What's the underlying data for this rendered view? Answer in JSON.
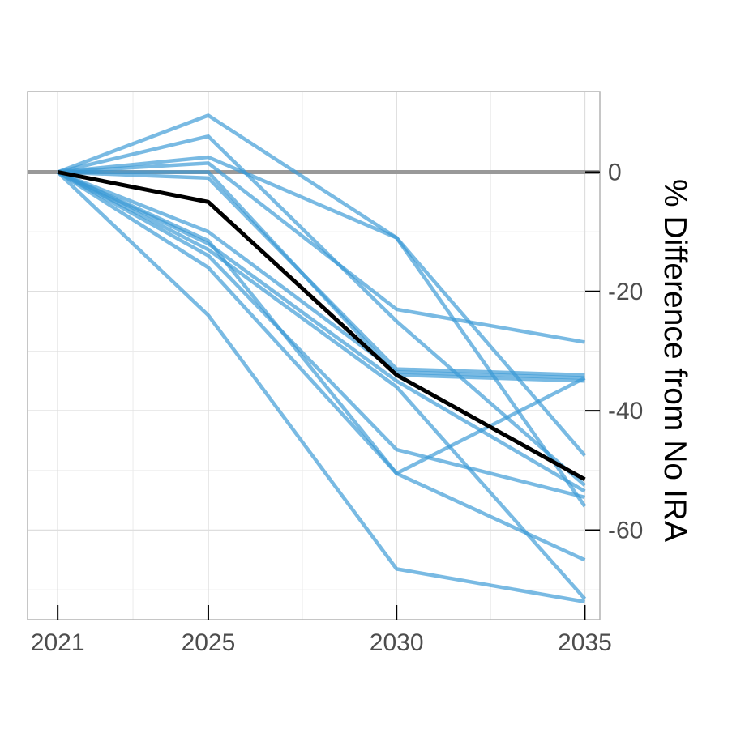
{
  "chart_data": {
    "type": "line",
    "title": "",
    "xlabel": "",
    "ylabel": "% Difference from No IRA",
    "x": [
      2021,
      2025,
      2030,
      2035
    ],
    "xlim": [
      2020.2,
      2035.4
    ],
    "ylim": [
      -75,
      13.5
    ],
    "x_ticks": [
      2021,
      2025,
      2030,
      2035
    ],
    "y_ticks": [
      0,
      -20,
      -40,
      -60
    ],
    "y_axis_position": "right",
    "grid": true,
    "legend": "none",
    "reference_line": {
      "y": 0,
      "color": "#999999"
    },
    "colors": {
      "models": "#3a9ad6",
      "median": "#000000"
    },
    "series": [
      {
        "values": [
          0,
          9.5,
          -11,
          -47.5
        ]
      },
      {
        "values": [
          0,
          6,
          -25,
          -52.5
        ]
      },
      {
        "values": [
          0,
          2.5,
          -11,
          -56
        ]
      },
      {
        "values": [
          0,
          1.5,
          -23,
          -28.5
        ]
      },
      {
        "values": [
          0,
          -1,
          -33,
          -34
        ]
      },
      {
        "values": [
          0,
          0,
          -34,
          -35
        ]
      },
      {
        "values": [
          0,
          -10,
          -33.5,
          -34.5
        ]
      },
      {
        "values": [
          0,
          -12,
          -35,
          -53.5
        ]
      },
      {
        "values": [
          0,
          -14,
          -46.5,
          -54.5
        ]
      },
      {
        "values": [
          0,
          -11.5,
          -50.5,
          -34.5
        ]
      },
      {
        "values": [
          0,
          -16,
          -50.5,
          -65
        ]
      },
      {
        "values": [
          0,
          -24,
          -66.5,
          -72
        ]
      },
      {
        "values": [
          0,
          -13,
          -36,
          -71.5
        ]
      },
      {
        "values": [
          0,
          -5,
          -34,
          -51.5
        ],
        "role": "median"
      }
    ]
  }
}
